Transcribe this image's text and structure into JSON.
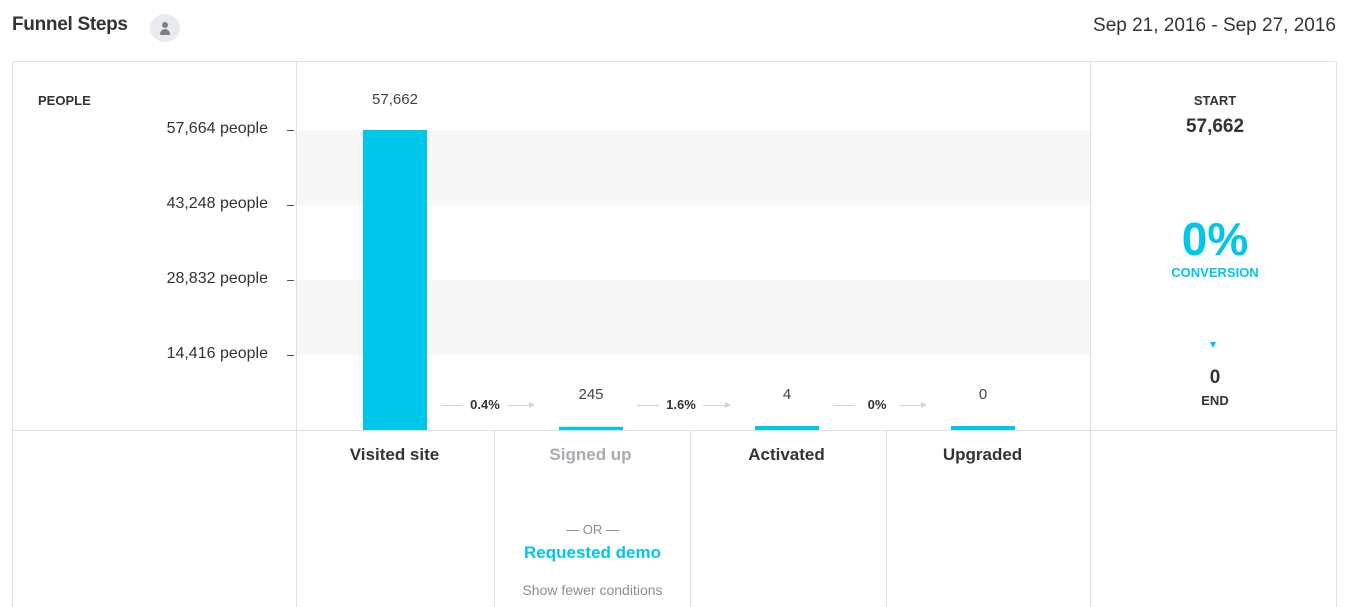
{
  "header": {
    "title": "Funnel Steps",
    "user_icon": "user-icon",
    "date_range": "Sep 21, 2016 - Sep 27, 2016"
  },
  "axis": {
    "label": "PEOPLE",
    "ticks": [
      "57,664 people",
      "43,248 people",
      "28,832 people",
      "14,416 people"
    ]
  },
  "steps": [
    {
      "name": "Visited site",
      "value_label": "57,662",
      "muted": false
    },
    {
      "name": "Signed up",
      "value_label": "245",
      "muted": true
    },
    {
      "name": "Activated",
      "value_label": "4",
      "muted": false
    },
    {
      "name": "Upgraded",
      "value_label": "0",
      "muted": false
    }
  ],
  "conversions": [
    "0.4%",
    "1.6%",
    "0%"
  ],
  "step_details": {
    "or_label": "— OR —",
    "alt_step": "Requested demo",
    "show_fewer": "Show fewer conditions"
  },
  "summary": {
    "start_label": "START",
    "start_value": "57,662",
    "conversion_value": "0%",
    "conversion_label": "CONVERSION",
    "end_value": "0",
    "end_label": "END"
  },
  "colors": {
    "accent": "#00c6ea",
    "muted_bar": "#e7e9ec",
    "band": "#f7f7f7",
    "border": "#dde0e4"
  },
  "chart_data": {
    "type": "bar",
    "categories": [
      "Visited site",
      "Signed up",
      "Activated",
      "Upgraded"
    ],
    "values": [
      57662,
      245,
      4,
      0
    ],
    "data_labels": [
      "57,662",
      "245",
      "4",
      "0"
    ],
    "conversion_rates": [
      "0.4%",
      "1.6%",
      "0%"
    ],
    "ylabel": "PEOPLE",
    "yticks": [
      57664,
      43248,
      28832,
      14416
    ],
    "ytick_labels": [
      "57,664 people",
      "43,248 people",
      "28,832 people",
      "14,416 people"
    ],
    "ylim": [
      0,
      57664
    ],
    "grid": "alternating bands",
    "legend": "none"
  }
}
